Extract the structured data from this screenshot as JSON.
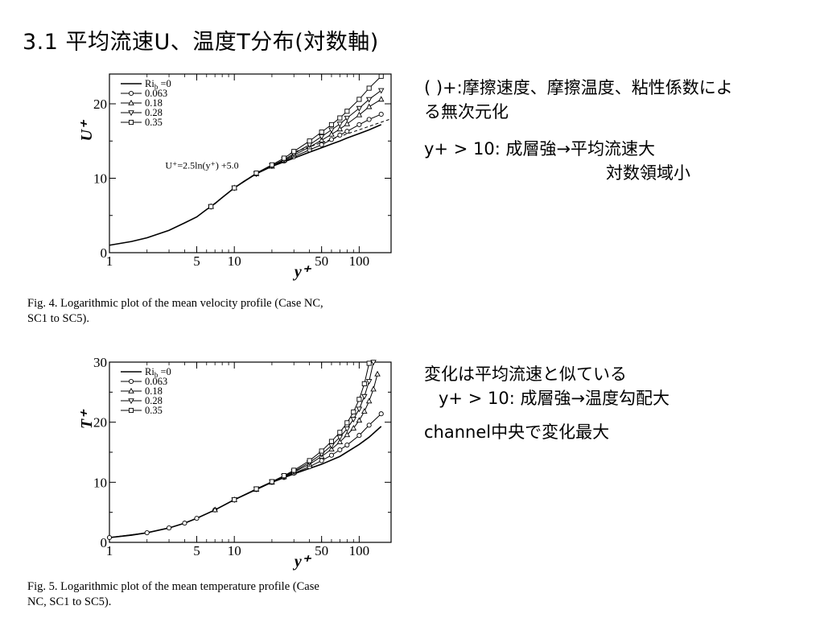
{
  "slide": {
    "title": "3.1 平均流速U、温度T分布(対数軸)"
  },
  "notes": {
    "top": {
      "line1": "( )+:摩擦速度、摩擦温度、粘性係数によ",
      "line2": "る無次元化",
      "line3": "y+ > 10: 成層強→平均流速大",
      "line4": "対数領域小"
    },
    "bottom": {
      "line1": "変化は平均流速と似ている",
      "line2": "y+ > 10: 成層強→温度勾配大",
      "line3": "channel中央で変化最大"
    }
  },
  "chart_data": [
    {
      "type": "line",
      "caption_line1": "Fig.  4. Logarithmic plot of the mean velocity profile (Case NC,",
      "caption_line2": "SC1 to SC5).",
      "xlabel": "y⁺",
      "ylabel": "U⁺",
      "xscale": "log",
      "xlim": [
        1,
        180
      ],
      "ylim": [
        0,
        24
      ],
      "xticks": [
        {
          "v": 1,
          "label": "1"
        },
        {
          "v": 5,
          "label": "5"
        },
        {
          "v": 10,
          "label": "10"
        },
        {
          "v": 50,
          "label": "50"
        },
        {
          "v": 100,
          "label": "100"
        }
      ],
      "yticks": [
        {
          "v": 0,
          "label": "0"
        },
        {
          "v": 10,
          "label": "10"
        },
        {
          "v": 20,
          "label": "20"
        }
      ],
      "legend_position": "top-left",
      "legend_title": "Ri_b",
      "annotation": "U⁺=2.5ln(y⁺) +5.0",
      "log_law": {
        "a": 2.5,
        "b": 5.0,
        "x_range": [
          28,
          180
        ]
      },
      "series": [
        {
          "name": "Ri",
          "legend": "=0",
          "marker": "none",
          "x": [
            1,
            1.5,
            2,
            3,
            4,
            5,
            6,
            7,
            8,
            10,
            12,
            15,
            20,
            25,
            30,
            40,
            50,
            60,
            70,
            80,
            100,
            120,
            150
          ],
          "y": [
            1,
            1.5,
            2,
            3,
            4,
            4.8,
            5.8,
            6.6,
            7.4,
            8.7,
            9.6,
            10.6,
            11.6,
            12.2,
            12.7,
            13.5,
            14.1,
            14.6,
            15.0,
            15.4,
            16.0,
            16.5,
            17.2
          ]
        },
        {
          "name": "0.063",
          "legend": "0.063",
          "marker": "circle",
          "x": [
            6.5,
            10,
            15,
            20,
            25,
            30,
            40,
            50,
            60,
            70,
            80,
            100,
            120,
            150
          ],
          "y": [
            6.2,
            8.7,
            10.6,
            11.6,
            12.3,
            12.9,
            13.8,
            14.5,
            15.2,
            15.8,
            16.3,
            17.2,
            17.9,
            18.6
          ]
        },
        {
          "name": "0.18",
          "legend": "0.18",
          "marker": "triangle-up",
          "x": [
            6.5,
            10,
            15,
            20,
            25,
            30,
            40,
            50,
            60,
            70,
            80,
            100,
            120,
            150
          ],
          "y": [
            6.2,
            8.7,
            10.6,
            11.6,
            12.4,
            13.1,
            14.2,
            15.1,
            15.9,
            16.6,
            17.3,
            18.5,
            19.6,
            20.6
          ]
        },
        {
          "name": "0.28",
          "legend": "0.28",
          "marker": "triangle-down",
          "x": [
            6.5,
            10,
            15,
            20,
            25,
            30,
            40,
            50,
            60,
            70,
            80,
            100,
            120,
            150
          ],
          "y": [
            6.2,
            8.7,
            10.6,
            11.7,
            12.5,
            13.3,
            14.5,
            15.6,
            16.5,
            17.3,
            18.1,
            19.4,
            20.6,
            21.8
          ]
        },
        {
          "name": "0.35",
          "legend": "0.35",
          "marker": "square",
          "x": [
            6.5,
            10,
            15,
            20,
            25,
            30,
            40,
            50,
            60,
            70,
            80,
            100,
            120,
            150
          ],
          "y": [
            6.2,
            8.7,
            10.7,
            11.8,
            12.7,
            13.6,
            15.0,
            16.2,
            17.2,
            18.1,
            19.0,
            20.6,
            22.1,
            23.7
          ]
        }
      ]
    },
    {
      "type": "line",
      "caption_line1": "Fig.  5. Logarithmic plot of the mean temperature profile (Case",
      "caption_line2": "NC, SC1 to SC5).",
      "xlabel": "y⁺",
      "ylabel": "T⁺",
      "xscale": "log",
      "xlim": [
        1,
        180
      ],
      "ylim": [
        0,
        30
      ],
      "xticks": [
        {
          "v": 1,
          "label": "1"
        },
        {
          "v": 5,
          "label": "5"
        },
        {
          "v": 10,
          "label": "10"
        },
        {
          "v": 50,
          "label": "50"
        },
        {
          "v": 100,
          "label": "100"
        }
      ],
      "yticks": [
        {
          "v": 0,
          "label": "0"
        },
        {
          "v": 10,
          "label": "10"
        },
        {
          "v": 20,
          "label": "20"
        },
        {
          "v": 30,
          "label": "30"
        }
      ],
      "legend_position": "top-left",
      "legend_title": "Ri_b",
      "series": [
        {
          "name": "Ri",
          "legend": "=0",
          "marker": "none",
          "x": [
            1,
            1.5,
            2,
            3,
            4,
            5,
            7,
            10,
            15,
            20,
            30,
            40,
            50,
            70,
            100,
            120,
            150
          ],
          "y": [
            0.8,
            1.2,
            1.6,
            2.4,
            3.2,
            4.0,
            5.4,
            7.1,
            8.8,
            10.0,
            11.4,
            12.3,
            13.0,
            14.3,
            16.3,
            17.5,
            19.3
          ]
        },
        {
          "name": "0.063",
          "legend": "0.063",
          "marker": "circle",
          "x": [
            1,
            2,
            3,
            4,
            5,
            7,
            10,
            15,
            20,
            25,
            30,
            40,
            50,
            60,
            70,
            80,
            100,
            120,
            150
          ],
          "y": [
            0.8,
            1.6,
            2.4,
            3.2,
            4.0,
            5.4,
            7.1,
            8.8,
            10.0,
            10.8,
            11.5,
            12.6,
            13.6,
            14.5,
            15.4,
            16.2,
            17.8,
            19.5,
            21.4
          ]
        },
        {
          "name": "0.18",
          "legend": "0.18",
          "marker": "triangle-up",
          "x": [
            7,
            10,
            15,
            20,
            25,
            30,
            40,
            50,
            60,
            70,
            80,
            90,
            100,
            110,
            120,
            130,
            140
          ],
          "y": [
            5.4,
            7.1,
            8.8,
            10.0,
            10.9,
            11.7,
            13.0,
            14.3,
            15.5,
            16.7,
            17.9,
            19.0,
            20.3,
            21.8,
            23.5,
            25.5,
            28.0
          ]
        },
        {
          "name": "0.28",
          "legend": "0.28",
          "marker": "triangle-down",
          "x": [
            10,
            15,
            20,
            25,
            30,
            40,
            50,
            60,
            70,
            80,
            90,
            100,
            110,
            120,
            130
          ],
          "y": [
            7.1,
            8.9,
            10.1,
            11.0,
            11.8,
            13.3,
            14.7,
            16.1,
            17.5,
            18.9,
            20.5,
            22.2,
            24.3,
            26.8,
            30.0
          ]
        },
        {
          "name": "0.35",
          "legend": "0.35",
          "marker": "square",
          "x": [
            10,
            15,
            20,
            25,
            30,
            40,
            50,
            60,
            70,
            80,
            90,
            100,
            110,
            120
          ],
          "y": [
            7.1,
            8.9,
            10.1,
            11.1,
            12.0,
            13.6,
            15.2,
            16.8,
            18.3,
            19.9,
            21.7,
            23.8,
            26.4,
            29.8
          ]
        }
      ]
    }
  ]
}
